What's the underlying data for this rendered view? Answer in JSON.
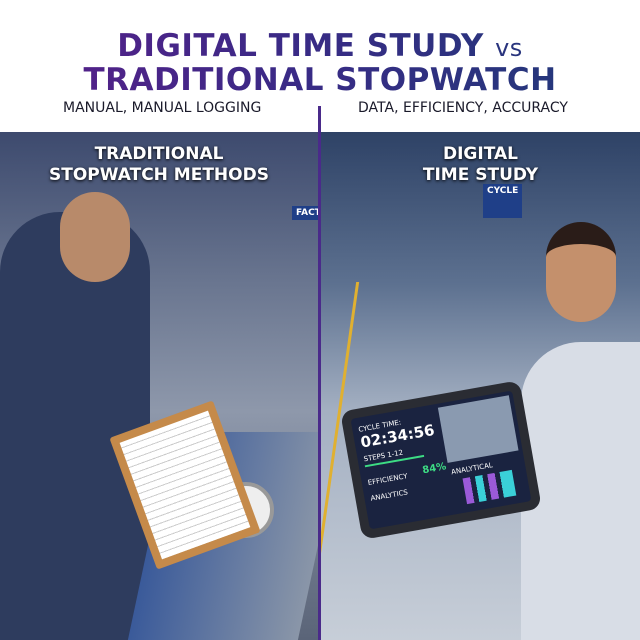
{
  "header": {
    "title_line1": "DIGITAL TIME STUDY",
    "title_vs": "vs",
    "title_line2": "TRADITIONAL STOPWATCH",
    "left_subtitle": "MANUAL, MANUAL LOGGING",
    "right_subtitle": "DATA, EFFICIENCY, ACCURACY"
  },
  "left_panel": {
    "label_line1": "TRADITIONAL",
    "label_line2": "STOPWATCH METHODS",
    "factory_sign": "FACTORY"
  },
  "right_panel": {
    "label_line1": "DIGITAL",
    "label_line2": "TIME STUDY",
    "cycle_sign": "CYCLE",
    "tablet": {
      "cycle_label": "CYCLE TIME:",
      "cycle_time": "02:34:56",
      "steps": "STEPS 1-12",
      "efficiency_label": "EFFICIENCY",
      "efficiency_value": "84%",
      "analytics_left": "ANALYTICS",
      "analytics_right": "ANALYTICAL"
    }
  },
  "colors": {
    "title_start": "#5a1f8a",
    "title_end": "#1f3a78",
    "divider": "#4a2a8a",
    "efficiency": "#3ddc84"
  }
}
